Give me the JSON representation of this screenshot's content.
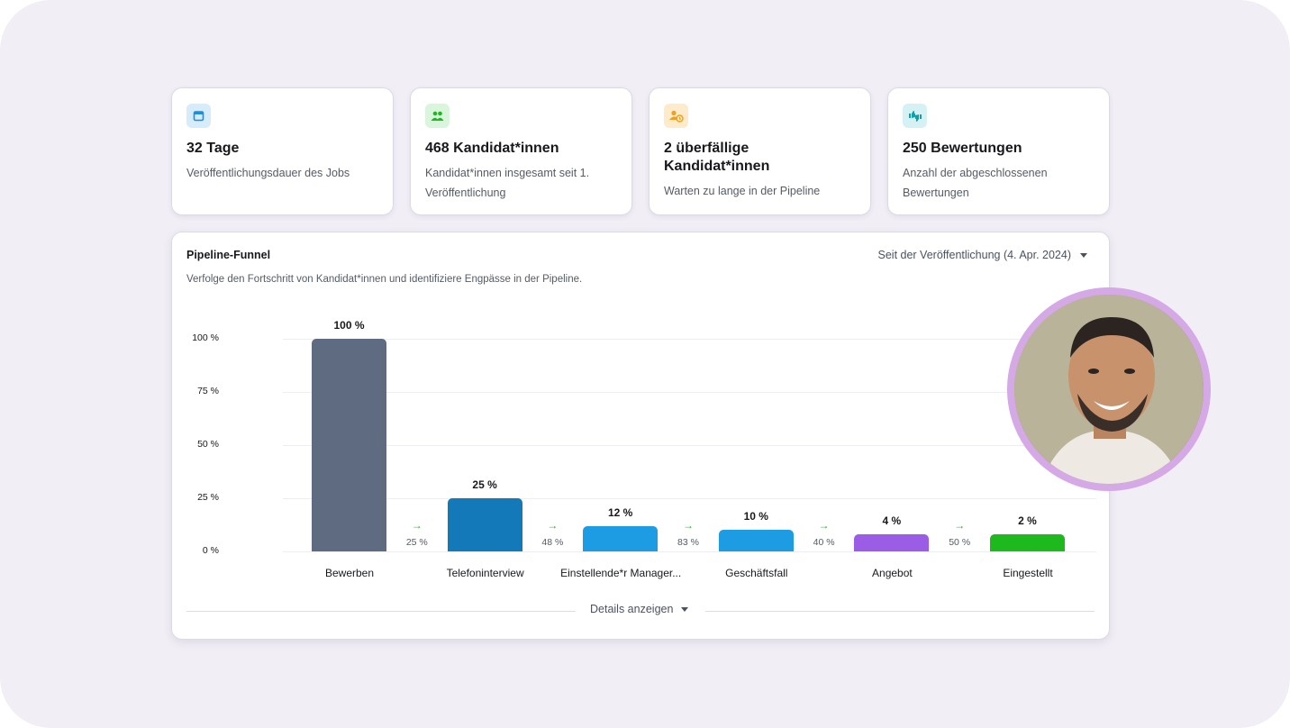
{
  "stats": [
    {
      "icon": "calendar-icon",
      "icon_bg": "#d6ecfa",
      "icon_color": "#1d8fe0",
      "title": "32 Tage",
      "subtitle": "Veröffentlichungsdauer des Jobs"
    },
    {
      "icon": "people-icon",
      "icon_bg": "#d9f5dc",
      "icon_color": "#1db91d",
      "title": "468 Kandidat*innen",
      "subtitle": "Kandidat*innen insgesamt seit 1. Veröffentlichung"
    },
    {
      "icon": "person-clock-icon",
      "icon_bg": "#fdebcc",
      "icon_color": "#f0a020",
      "title": "2 überfällige Kandidat*innen",
      "subtitle": "Warten zu lange in der Pipeline"
    },
    {
      "icon": "thumbs-icon",
      "icon_bg": "#d5f1f3",
      "icon_color": "#10a0a8",
      "title": "250 Bewertungen",
      "subtitle": "Anzahl der abgeschlossenen Bewertungen"
    }
  ],
  "panel": {
    "title": "Pipeline-Funnel",
    "subtitle": "Verfolge den Fortschritt von Kandidat*innen und identifiziere Engpässe in der Pipeline.",
    "filter": "Seit der Veröffentlichung (4. Apr. 2024)",
    "details": "Details anzeigen"
  },
  "chart_data": {
    "type": "bar",
    "categories": [
      "Bewerben",
      "Telefoninterview",
      "Einstellende*r Manager...",
      "Geschäftsfall",
      "Angebot",
      "Eingestellt"
    ],
    "values": [
      100,
      25,
      12,
      10,
      4,
      2
    ],
    "value_labels": [
      "100 %",
      "25 %",
      "12 %",
      "10 %",
      "4 %",
      "2 %"
    ],
    "colors": [
      "#5f6b81",
      "#1479b8",
      "#1d9be3",
      "#1d9be3",
      "#9b5de5",
      "#1db91d"
    ],
    "conversion_labels": [
      "25 %",
      "48 %",
      "83 %",
      "40 %",
      "50 %"
    ],
    "yticks": [
      "0 %",
      "25 %",
      "50 %",
      "75 %",
      "100 %"
    ],
    "ylim": [
      0,
      100
    ],
    "grid": true
  },
  "avatar": {
    "label": "smiling-man-photo"
  }
}
